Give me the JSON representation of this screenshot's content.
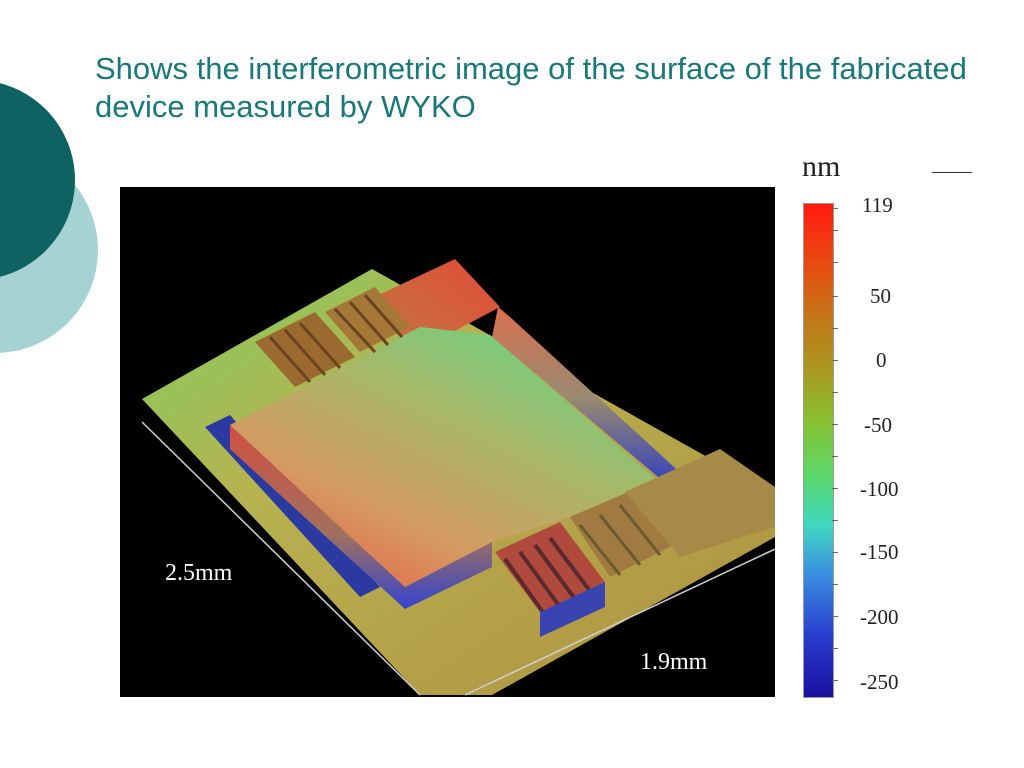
{
  "slide": {
    "title": "Shows the interferometric image of the surface of the fabricated device measured by WYKO"
  },
  "figure": {
    "dimension_left": "2.5mm",
    "dimension_bottom": "1.9mm"
  },
  "colorbar": {
    "unit": "nm",
    "ticks": [
      "119",
      "50",
      "0",
      "-50",
      "-100",
      "-150",
      "-200",
      "-250"
    ]
  },
  "colors": {
    "title": "#1a7878",
    "deco_dark": "#0e6262",
    "deco_light": "#a5d2d2"
  }
}
